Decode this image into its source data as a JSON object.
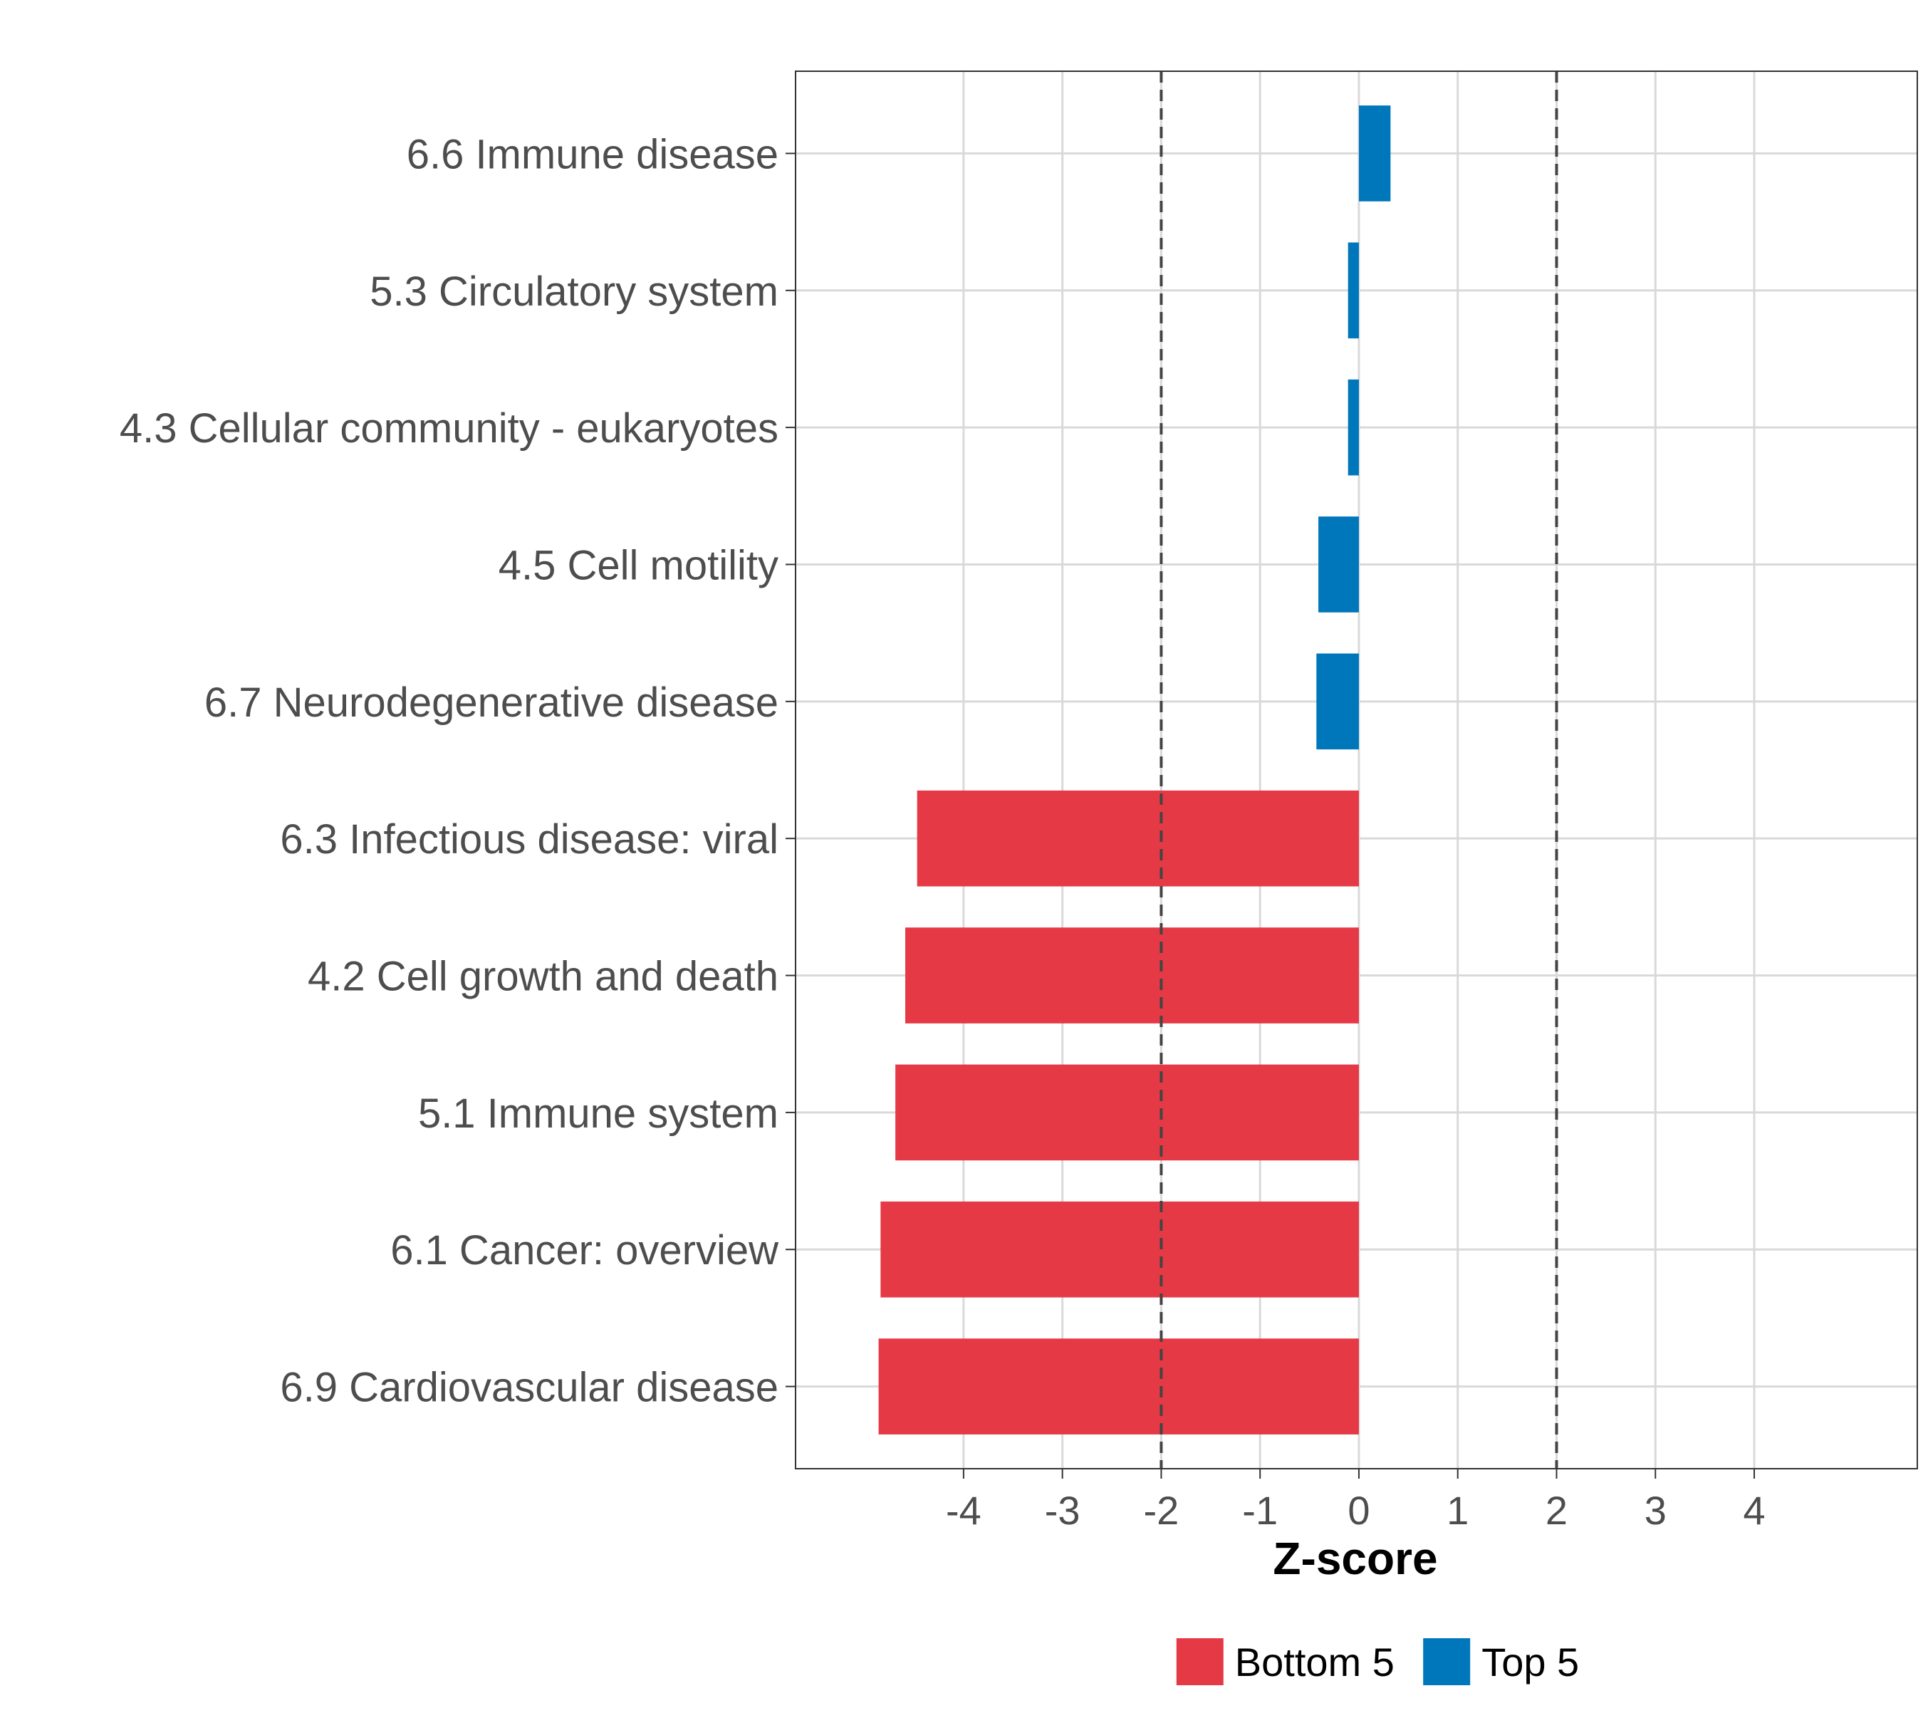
{
  "chart_data": {
    "type": "bar",
    "orientation": "horizontal",
    "categories": [
      "6.6 Immune disease",
      "5.3 Circulatory system",
      "4.3 Cellular community - eukaryotes",
      "4.5 Cell motility",
      "6.7 Neurodegenerative disease",
      "6.3 Infectious disease: viral",
      "4.2 Cell growth and death",
      "5.1 Immune system",
      "6.1 Cancer: overview",
      "6.9 Cardiovascular disease"
    ],
    "values": [
      0.32,
      -0.11,
      -0.11,
      -0.41,
      -0.43,
      -4.47,
      -4.59,
      -4.69,
      -4.84,
      -4.86
    ],
    "groups": [
      "Top 5",
      "Top 5",
      "Top 5",
      "Top 5",
      "Top 5",
      "Bottom 5",
      "Bottom 5",
      "Bottom 5",
      "Bottom 5",
      "Bottom 5"
    ],
    "xlabel": "Z-score",
    "ylabel": "",
    "xlim": [
      -5.7,
      5.65
    ],
    "xticks": [
      -4,
      -3,
      -2,
      -1,
      0,
      1,
      2,
      3,
      4
    ],
    "reference_lines": [
      -2,
      2
    ],
    "grid": true,
    "legend": {
      "position": "bottom",
      "entries": [
        {
          "label": "Bottom 5",
          "color": "#E63946"
        },
        {
          "label": "Top 5",
          "color": "#0077BB"
        }
      ]
    }
  },
  "colors": {
    "Bottom 5": "#E63946",
    "Top 5": "#0077BB",
    "grid": "#D9D9D9",
    "panel_border": "#333333",
    "reference_line": "#444444"
  }
}
